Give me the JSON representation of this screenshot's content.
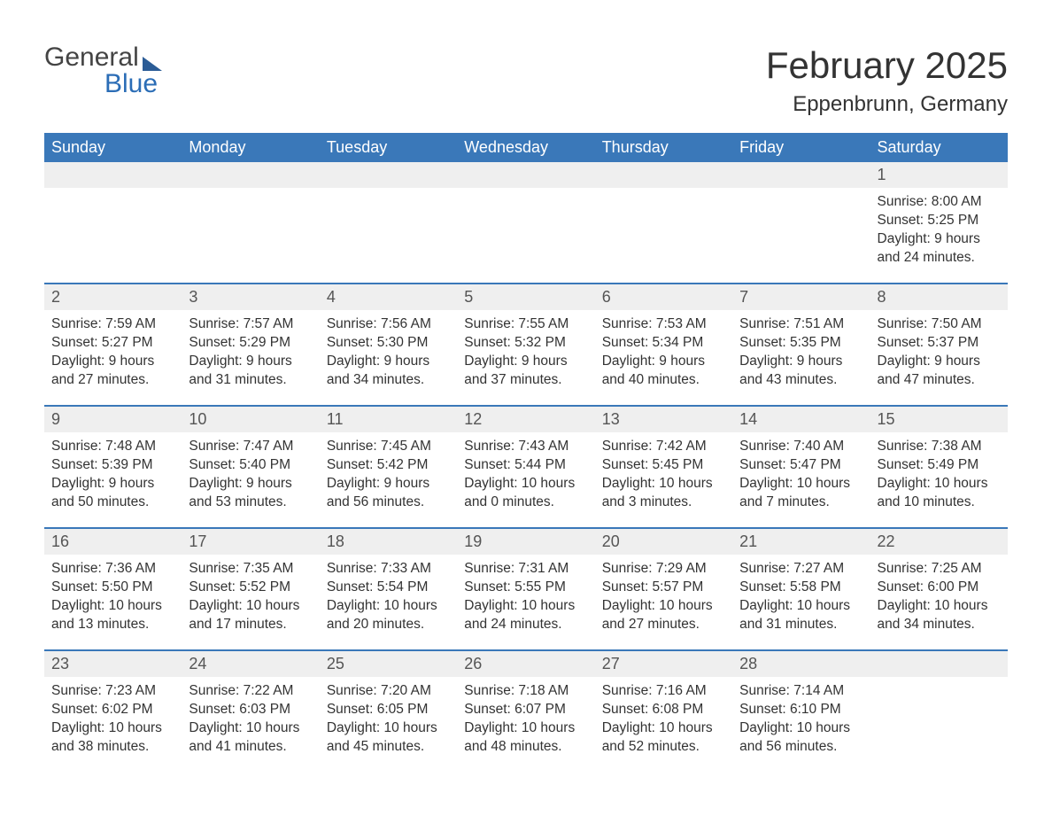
{
  "logo": {
    "line1": "General",
    "line2": "Blue"
  },
  "title": "February 2025",
  "location": "Eppenbrunn, Germany",
  "colors": {
    "header_bg": "#3a78b9",
    "header_text": "#ffffff",
    "daynum_bg": "#efefef",
    "border": "#3a78b9",
    "text": "#333333",
    "logo_blue": "#2b6db6"
  },
  "weekdays": [
    "Sunday",
    "Monday",
    "Tuesday",
    "Wednesday",
    "Thursday",
    "Friday",
    "Saturday"
  ],
  "weeks": [
    [
      null,
      null,
      null,
      null,
      null,
      null,
      {
        "n": "1",
        "sunrise": "Sunrise: 8:00 AM",
        "sunset": "Sunset: 5:25 PM",
        "d1": "Daylight: 9 hours",
        "d2": "and 24 minutes."
      }
    ],
    [
      {
        "n": "2",
        "sunrise": "Sunrise: 7:59 AM",
        "sunset": "Sunset: 5:27 PM",
        "d1": "Daylight: 9 hours",
        "d2": "and 27 minutes."
      },
      {
        "n": "3",
        "sunrise": "Sunrise: 7:57 AM",
        "sunset": "Sunset: 5:29 PM",
        "d1": "Daylight: 9 hours",
        "d2": "and 31 minutes."
      },
      {
        "n": "4",
        "sunrise": "Sunrise: 7:56 AM",
        "sunset": "Sunset: 5:30 PM",
        "d1": "Daylight: 9 hours",
        "d2": "and 34 minutes."
      },
      {
        "n": "5",
        "sunrise": "Sunrise: 7:55 AM",
        "sunset": "Sunset: 5:32 PM",
        "d1": "Daylight: 9 hours",
        "d2": "and 37 minutes."
      },
      {
        "n": "6",
        "sunrise": "Sunrise: 7:53 AM",
        "sunset": "Sunset: 5:34 PM",
        "d1": "Daylight: 9 hours",
        "d2": "and 40 minutes."
      },
      {
        "n": "7",
        "sunrise": "Sunrise: 7:51 AM",
        "sunset": "Sunset: 5:35 PM",
        "d1": "Daylight: 9 hours",
        "d2": "and 43 minutes."
      },
      {
        "n": "8",
        "sunrise": "Sunrise: 7:50 AM",
        "sunset": "Sunset: 5:37 PM",
        "d1": "Daylight: 9 hours",
        "d2": "and 47 minutes."
      }
    ],
    [
      {
        "n": "9",
        "sunrise": "Sunrise: 7:48 AM",
        "sunset": "Sunset: 5:39 PM",
        "d1": "Daylight: 9 hours",
        "d2": "and 50 minutes."
      },
      {
        "n": "10",
        "sunrise": "Sunrise: 7:47 AM",
        "sunset": "Sunset: 5:40 PM",
        "d1": "Daylight: 9 hours",
        "d2": "and 53 minutes."
      },
      {
        "n": "11",
        "sunrise": "Sunrise: 7:45 AM",
        "sunset": "Sunset: 5:42 PM",
        "d1": "Daylight: 9 hours",
        "d2": "and 56 minutes."
      },
      {
        "n": "12",
        "sunrise": "Sunrise: 7:43 AM",
        "sunset": "Sunset: 5:44 PM",
        "d1": "Daylight: 10 hours",
        "d2": "and 0 minutes."
      },
      {
        "n": "13",
        "sunrise": "Sunrise: 7:42 AM",
        "sunset": "Sunset: 5:45 PM",
        "d1": "Daylight: 10 hours",
        "d2": "and 3 minutes."
      },
      {
        "n": "14",
        "sunrise": "Sunrise: 7:40 AM",
        "sunset": "Sunset: 5:47 PM",
        "d1": "Daylight: 10 hours",
        "d2": "and 7 minutes."
      },
      {
        "n": "15",
        "sunrise": "Sunrise: 7:38 AM",
        "sunset": "Sunset: 5:49 PM",
        "d1": "Daylight: 10 hours",
        "d2": "and 10 minutes."
      }
    ],
    [
      {
        "n": "16",
        "sunrise": "Sunrise: 7:36 AM",
        "sunset": "Sunset: 5:50 PM",
        "d1": "Daylight: 10 hours",
        "d2": "and 13 minutes."
      },
      {
        "n": "17",
        "sunrise": "Sunrise: 7:35 AM",
        "sunset": "Sunset: 5:52 PM",
        "d1": "Daylight: 10 hours",
        "d2": "and 17 minutes."
      },
      {
        "n": "18",
        "sunrise": "Sunrise: 7:33 AM",
        "sunset": "Sunset: 5:54 PM",
        "d1": "Daylight: 10 hours",
        "d2": "and 20 minutes."
      },
      {
        "n": "19",
        "sunrise": "Sunrise: 7:31 AM",
        "sunset": "Sunset: 5:55 PM",
        "d1": "Daylight: 10 hours",
        "d2": "and 24 minutes."
      },
      {
        "n": "20",
        "sunrise": "Sunrise: 7:29 AM",
        "sunset": "Sunset: 5:57 PM",
        "d1": "Daylight: 10 hours",
        "d2": "and 27 minutes."
      },
      {
        "n": "21",
        "sunrise": "Sunrise: 7:27 AM",
        "sunset": "Sunset: 5:58 PM",
        "d1": "Daylight: 10 hours",
        "d2": "and 31 minutes."
      },
      {
        "n": "22",
        "sunrise": "Sunrise: 7:25 AM",
        "sunset": "Sunset: 6:00 PM",
        "d1": "Daylight: 10 hours",
        "d2": "and 34 minutes."
      }
    ],
    [
      {
        "n": "23",
        "sunrise": "Sunrise: 7:23 AM",
        "sunset": "Sunset: 6:02 PM",
        "d1": "Daylight: 10 hours",
        "d2": "and 38 minutes."
      },
      {
        "n": "24",
        "sunrise": "Sunrise: 7:22 AM",
        "sunset": "Sunset: 6:03 PM",
        "d1": "Daylight: 10 hours",
        "d2": "and 41 minutes."
      },
      {
        "n": "25",
        "sunrise": "Sunrise: 7:20 AM",
        "sunset": "Sunset: 6:05 PM",
        "d1": "Daylight: 10 hours",
        "d2": "and 45 minutes."
      },
      {
        "n": "26",
        "sunrise": "Sunrise: 7:18 AM",
        "sunset": "Sunset: 6:07 PM",
        "d1": "Daylight: 10 hours",
        "d2": "and 48 minutes."
      },
      {
        "n": "27",
        "sunrise": "Sunrise: 7:16 AM",
        "sunset": "Sunset: 6:08 PM",
        "d1": "Daylight: 10 hours",
        "d2": "and 52 minutes."
      },
      {
        "n": "28",
        "sunrise": "Sunrise: 7:14 AM",
        "sunset": "Sunset: 6:10 PM",
        "d1": "Daylight: 10 hours",
        "d2": "and 56 minutes."
      },
      null
    ]
  ]
}
